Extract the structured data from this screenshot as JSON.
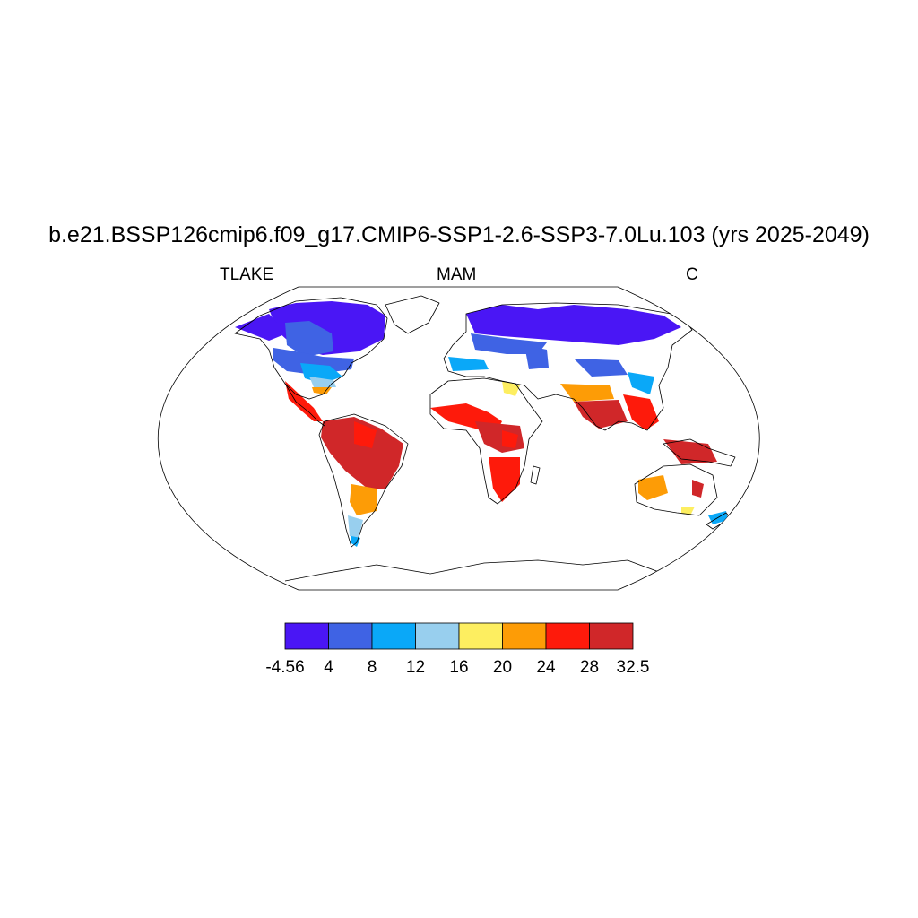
{
  "title": "b.e21.BSSP126cmip6.f09_g17.CMIP6-SSP1-2.6-SSP3-7.0Lu.103 (yrs 2025-2049)",
  "left_string": "TLAKE",
  "center_string": "MAM",
  "right_string": "C",
  "colorbar": {
    "colors": [
      "#4a16f5",
      "#3f63e4",
      "#0aa8f8",
      "#98cfee",
      "#fdee60",
      "#fd9c06",
      "#fe1a0b",
      "#d02729"
    ],
    "tick_labels": [
      "-4.56",
      "4",
      "8",
      "12",
      "16",
      "20",
      "24",
      "28",
      "32.5"
    ]
  }
}
